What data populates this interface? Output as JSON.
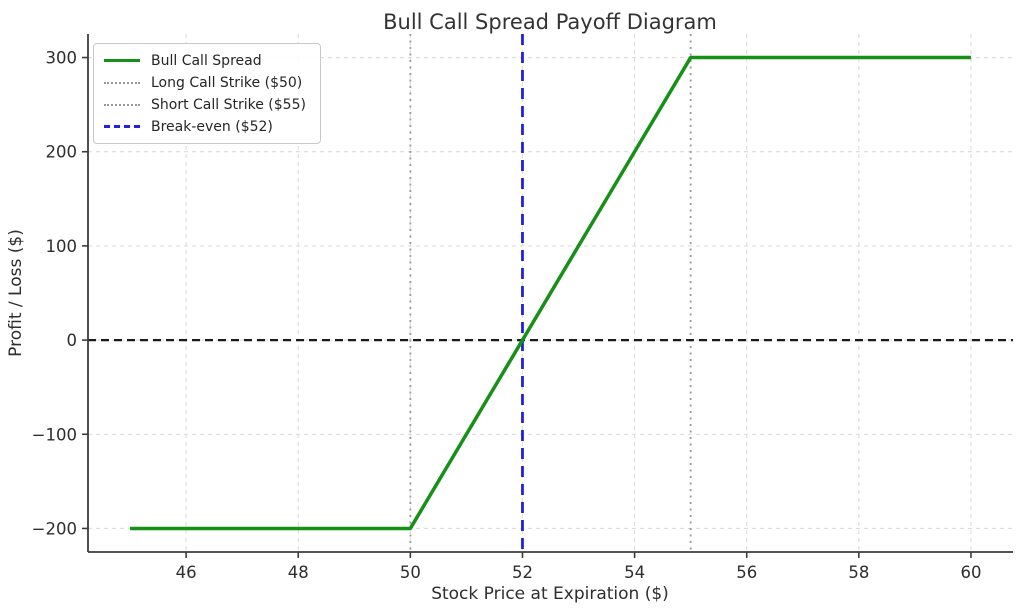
{
  "chart_data": {
    "type": "line",
    "title": "Bull Call Spread Payoff Diagram",
    "xlabel": "Stock Price at Expiration ($)",
    "ylabel": "Profit / Loss ($)",
    "xlim": [
      44.25,
      60.75
    ],
    "ylim": [
      -225,
      325
    ],
    "xticks": [
      46,
      48,
      50,
      52,
      54,
      56,
      58,
      60
    ],
    "yticks": [
      -200,
      -100,
      0,
      100,
      200,
      300
    ],
    "grid": true,
    "legend_position": "upper-left",
    "series": [
      {
        "name": "Bull Call Spread",
        "color": "#169016",
        "style": "solid",
        "width": 3.5,
        "points": [
          [
            45,
            -200
          ],
          [
            50,
            -200
          ],
          [
            55,
            300
          ],
          [
            60,
            300
          ]
        ]
      }
    ],
    "reference_lines": [
      {
        "name": "long-call-strike",
        "orientation": "vertical",
        "value": 50,
        "color": "#999999",
        "style": "dotted",
        "width": 1.8
      },
      {
        "name": "short-call-strike",
        "orientation": "vertical",
        "value": 55,
        "color": "#999999",
        "style": "dotted",
        "width": 1.8
      },
      {
        "name": "break-even",
        "orientation": "vertical",
        "value": 52,
        "color": "#2121d9",
        "style": "dashed",
        "width": 2.8
      },
      {
        "name": "zero-profit",
        "orientation": "horizontal",
        "value": 0,
        "color": "#1a1a1a",
        "style": "dashed",
        "width": 2.2
      }
    ],
    "legend": [
      {
        "label": "Bull Call Spread",
        "color": "#169016",
        "style": "solid"
      },
      {
        "label": "Long Call Strike ($50)",
        "color": "#999999",
        "style": "dotted"
      },
      {
        "label": "Short Call Strike ($55)",
        "color": "#999999",
        "style": "dotted"
      },
      {
        "label": "Break-even ($52)",
        "color": "#2121d9",
        "style": "dashed"
      }
    ],
    "key_values": {
      "long_strike": 50,
      "short_strike": 55,
      "break_even": 52,
      "max_loss": -200,
      "max_profit": 300
    }
  },
  "style": {
    "grid_color": "#dcdcdc",
    "spine_color": "#3c3c3c",
    "tick_color": "#3c3c3c"
  }
}
